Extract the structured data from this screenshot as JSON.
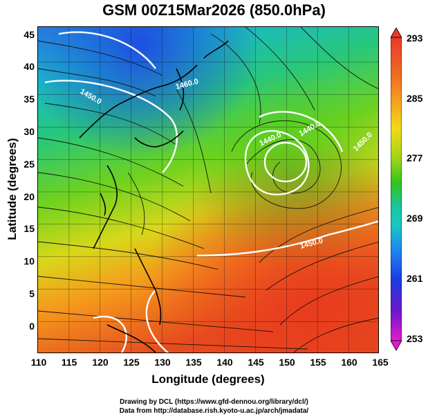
{
  "title": "GSM 00Z15Mar2026 (850.0hPa)",
  "xlabel": "Longitude (degrees)",
  "ylabel": "Latitude (degrees)",
  "x_ticks": [
    "110",
    "115",
    "120",
    "125",
    "130",
    "135",
    "140",
    "145",
    "150",
    "155",
    "160",
    "165"
  ],
  "y_ticks": [
    "0",
    "5",
    "10",
    "15",
    "20",
    "25",
    "30",
    "35",
    "40",
    "45"
  ],
  "colorbar": {
    "labels": [
      "293",
      "285",
      "277",
      "269",
      "261",
      "253"
    ],
    "colors": [
      "#e83a2a",
      "#f58a1f",
      "#f2d81a",
      "#33c21c",
      "#18c7c4",
      "#1f87f0",
      "#1a3be0",
      "#6a18c8",
      "#e21ad0"
    ]
  },
  "contours": [
    "1440.0",
    "1440.0",
    "1450.0",
    "1460.0",
    "1450.0",
    "1450.0"
  ],
  "credits": {
    "line1": "Drawing by DCL (https://www.gfd-dennou.org/library/dcl/)",
    "line2": "Data from http://database.rish.kyoto-u.ac.jp/arch/jmadata/"
  }
}
